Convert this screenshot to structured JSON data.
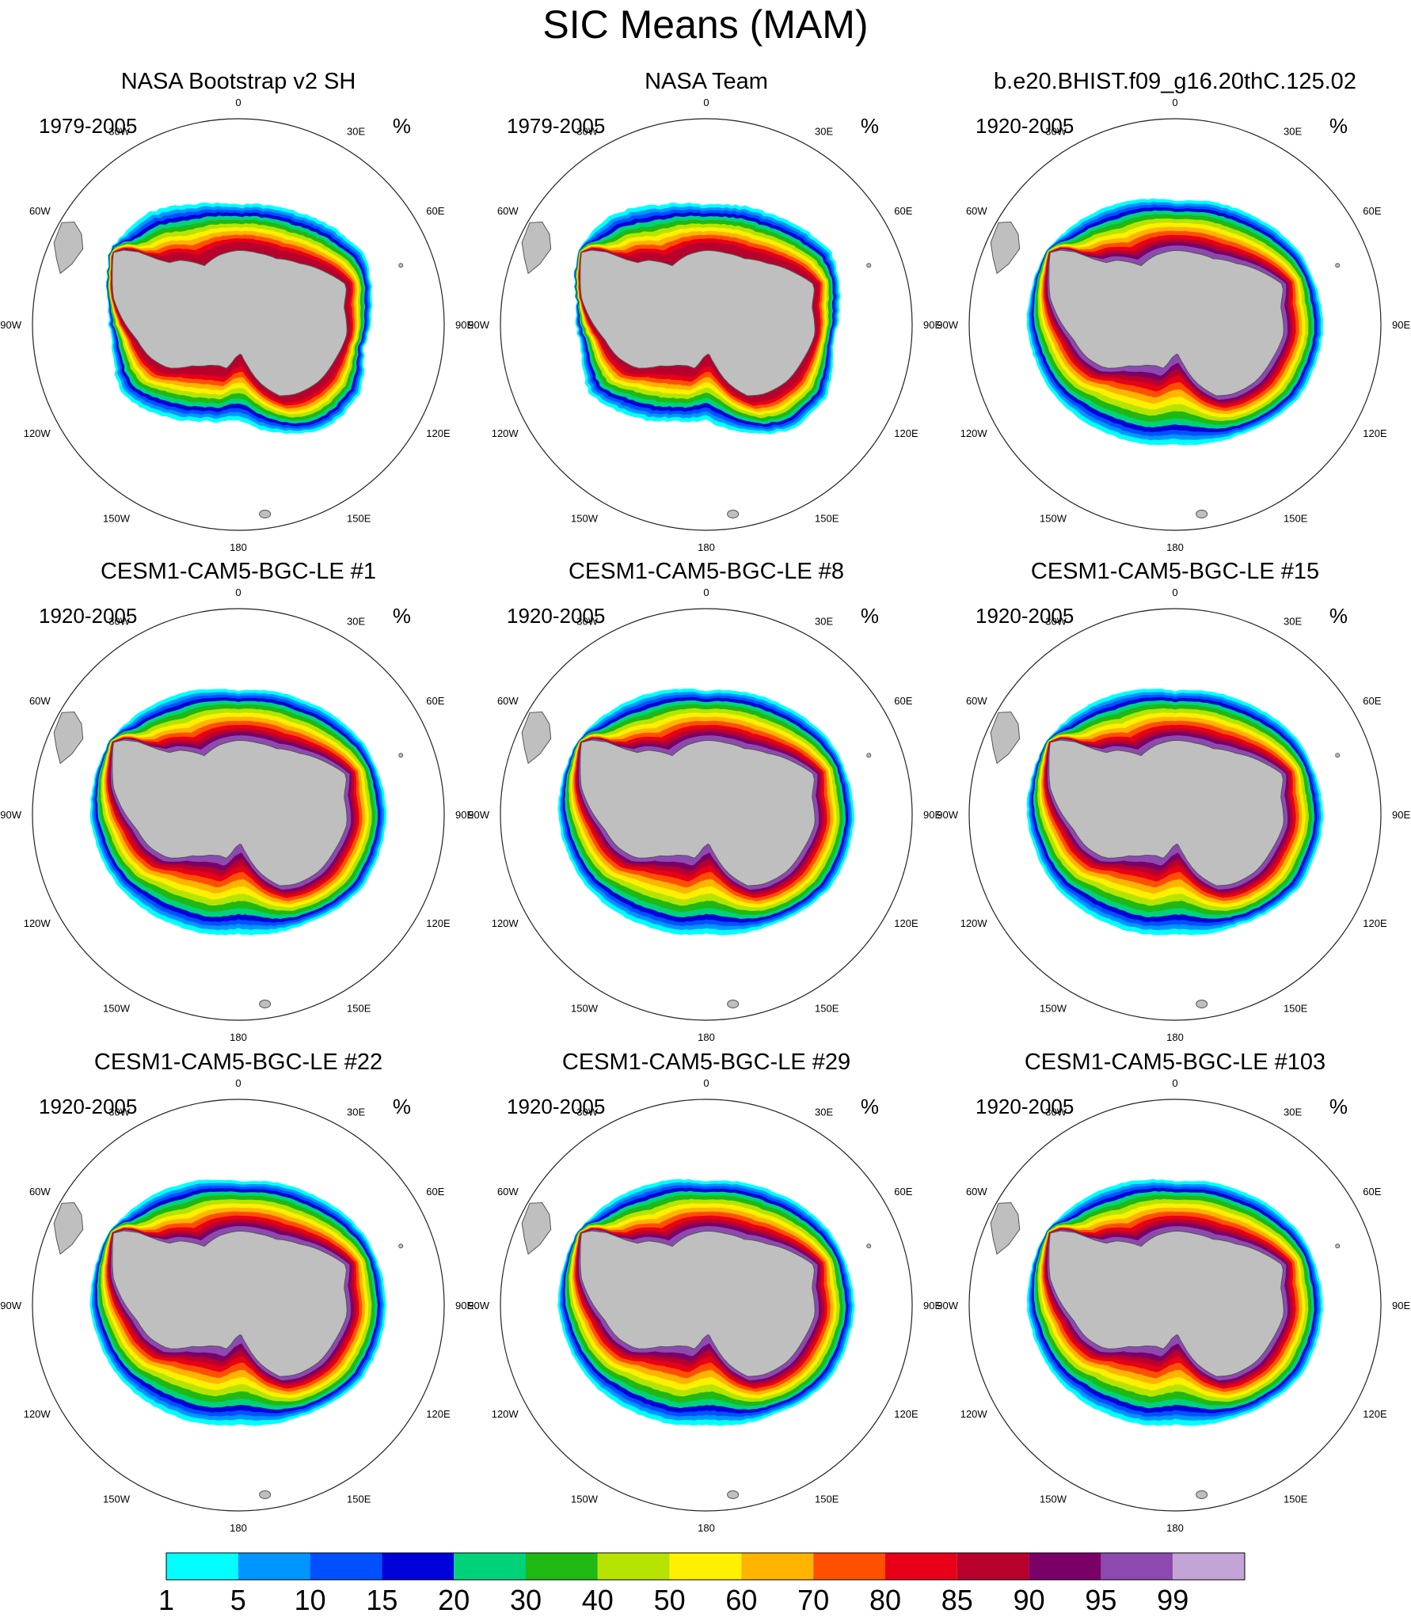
{
  "title": "SIC Means (MAM)",
  "panels": [
    {
      "title": "NASA Bootstrap v2 SH",
      "years": "1979-2005",
      "units": "%",
      "variant": "obs-bootstrap"
    },
    {
      "title": "NASA Team",
      "years": "1979-2005",
      "units": "%",
      "variant": "obs-team"
    },
    {
      "title": "b.e20.BHIST.f09_g16.20thC.125.02",
      "years": "1920-2005",
      "units": "%",
      "variant": "model-cesm2"
    },
    {
      "title": "CESM1-CAM5-BGC-LE #1",
      "years": "1920-2005",
      "units": "%",
      "variant": "model-le"
    },
    {
      "title": "CESM1-CAM5-BGC-LE #8",
      "years": "1920-2005",
      "units": "%",
      "variant": "model-le"
    },
    {
      "title": "CESM1-CAM5-BGC-LE #15",
      "years": "1920-2005",
      "units": "%",
      "variant": "model-le"
    },
    {
      "title": "CESM1-CAM5-BGC-LE #22",
      "years": "1920-2005",
      "units": "%",
      "variant": "model-le"
    },
    {
      "title": "CESM1-CAM5-BGC-LE #29",
      "years": "1920-2005",
      "units": "%",
      "variant": "model-le"
    },
    {
      "title": "CESM1-CAM5-BGC-LE #103",
      "years": "1920-2005",
      "units": "%",
      "variant": "model-le"
    }
  ],
  "longitude_labels": [
    {
      "text": "0",
      "lon": 0
    },
    {
      "text": "30E",
      "lon": 30
    },
    {
      "text": "60E",
      "lon": 60
    },
    {
      "text": "90E",
      "lon": 90
    },
    {
      "text": "120E",
      "lon": 120
    },
    {
      "text": "150E",
      "lon": 150
    },
    {
      "text": "180",
      "lon": 180
    },
    {
      "text": "150W",
      "lon": -150
    },
    {
      "text": "120W",
      "lon": -120
    },
    {
      "text": "90W",
      "lon": -90
    },
    {
      "text": "60W",
      "lon": -60
    },
    {
      "text": "30W",
      "lon": -30
    }
  ],
  "colorbar": {
    "levels": [
      "1",
      "5",
      "10",
      "15",
      "20",
      "30",
      "40",
      "50",
      "60",
      "70",
      "80",
      "85",
      "90",
      "95",
      "99"
    ],
    "colors": [
      "#00ffff",
      "#0096ff",
      "#0050ff",
      "#0000d8",
      "#00d27a",
      "#20b812",
      "#b6e400",
      "#fff000",
      "#ffb400",
      "#ff5000",
      "#e80018",
      "#b8002c",
      "#7a0068",
      "#8c4ab0",
      "#c2a4d6"
    ]
  },
  "map_colors": {
    "land": "#bfbfbf",
    "coastline": "#555555",
    "circle": "#222222"
  }
}
